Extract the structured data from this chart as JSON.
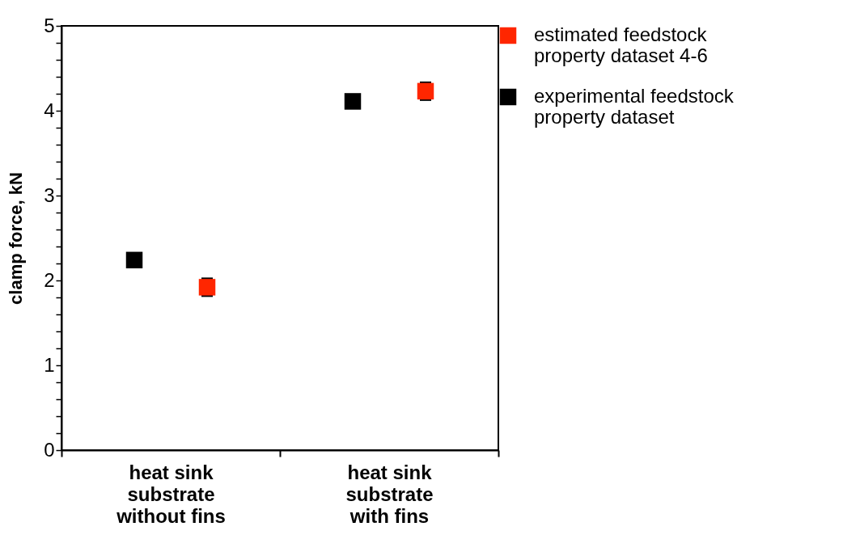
{
  "chart_data": {
    "type": "scatter",
    "ylabel": "clamp force, kN",
    "categories": [
      "heat sink\nsubstrate\nwithout fins",
      "heat sink\nsubstrate\nwith fins"
    ],
    "series": [
      {
        "name": "estimated feedstock\nproperty dataset 4-6",
        "color": "#ff2600",
        "values": [
          1.92,
          4.23
        ],
        "errors": [
          0.1,
          0.1
        ]
      },
      {
        "name": "experimental feedstock\nproperty dataset",
        "color": "#000000",
        "values": [
          2.24,
          4.11
        ]
      }
    ],
    "ylim": [
      0,
      5
    ],
    "yticks": [
      0,
      {
        "value": 0.2,
        "label": null
      },
      {
        "value": 0.4,
        "label": null
      },
      {
        "value": 0.6,
        "label": null
      },
      {
        "value": 0.8,
        "label": null
      },
      1,
      {
        "value": 1.2,
        "label": null
      },
      {
        "value": 1.4,
        "label": null
      },
      {
        "value": 1.6,
        "label": null
      },
      {
        "value": 1.8,
        "label": null
      },
      2,
      {
        "value": 2.2,
        "label": null
      },
      {
        "value": 2.4,
        "label": null
      },
      {
        "value": 2.6,
        "label": null
      },
      {
        "value": 2.8,
        "label": null
      },
      3,
      {
        "value": 3.2,
        "label": null
      },
      {
        "value": 3.4,
        "label": null
      },
      {
        "value": 3.6,
        "label": null
      },
      {
        "value": 3.8,
        "label": null
      },
      4,
      {
        "value": 4.2,
        "label": null
      },
      {
        "value": 4.4,
        "label": null
      },
      {
        "value": 4.6,
        "label": null
      },
      {
        "value": 4.8,
        "label": null
      },
      5
    ],
    "grid": false,
    "legend": "right",
    "marker": "square"
  }
}
